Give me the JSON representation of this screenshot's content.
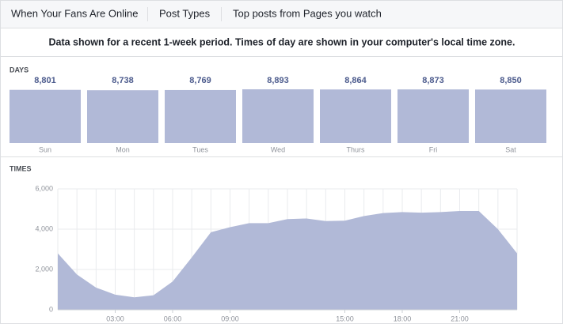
{
  "tabs": [
    "When Your Fans Are Online",
    "Post Types",
    "Top posts from Pages you watch"
  ],
  "notice": "Data shown for a recent 1-week period. Times of day are shown in your computer's local time zone.",
  "chart_data": [
    {
      "type": "bar",
      "title": "DAYS",
      "color": "#b1b9d7",
      "categories": [
        "Sun",
        "Mon",
        "Tues",
        "Wed",
        "Thurs",
        "Fri",
        "Sat"
      ],
      "values": [
        8801,
        8738,
        8769,
        8893,
        8864,
        8873,
        8850
      ],
      "value_labels": [
        "8,801",
        "8,738",
        "8,769",
        "8,893",
        "8,864",
        "8,873",
        "8,850"
      ]
    },
    {
      "type": "area",
      "title": "TIMES",
      "color": "#b1b9d7",
      "grid": true,
      "x": [
        0,
        1,
        2,
        3,
        4,
        5,
        6,
        7,
        8,
        9,
        10,
        11,
        12,
        13,
        14,
        15,
        16,
        17,
        18,
        19,
        20,
        21,
        22,
        23,
        24
      ],
      "values": [
        2800,
        1750,
        1100,
        750,
        620,
        720,
        1400,
        2600,
        3850,
        4100,
        4300,
        4300,
        4500,
        4530,
        4400,
        4420,
        4650,
        4800,
        4850,
        4820,
        4850,
        4900,
        4900,
        4000,
        2800
      ],
      "xlim": [
        0,
        24
      ],
      "xticks": [
        {
          "value": 3,
          "label": "03:00"
        },
        {
          "value": 6,
          "label": "06:00"
        },
        {
          "value": 9,
          "label": "09:00"
        },
        {
          "value": 15,
          "label": "15:00"
        },
        {
          "value": 18,
          "label": "18:00"
        },
        {
          "value": 21,
          "label": "21:00"
        }
      ],
      "ylim": [
        0,
        6000
      ],
      "yticks": [
        0,
        {
          "value": 2000,
          "label": "2,000"
        },
        {
          "value": 4000,
          "label": "4,000"
        },
        {
          "value": 6000,
          "label": "6,000"
        }
      ]
    }
  ]
}
